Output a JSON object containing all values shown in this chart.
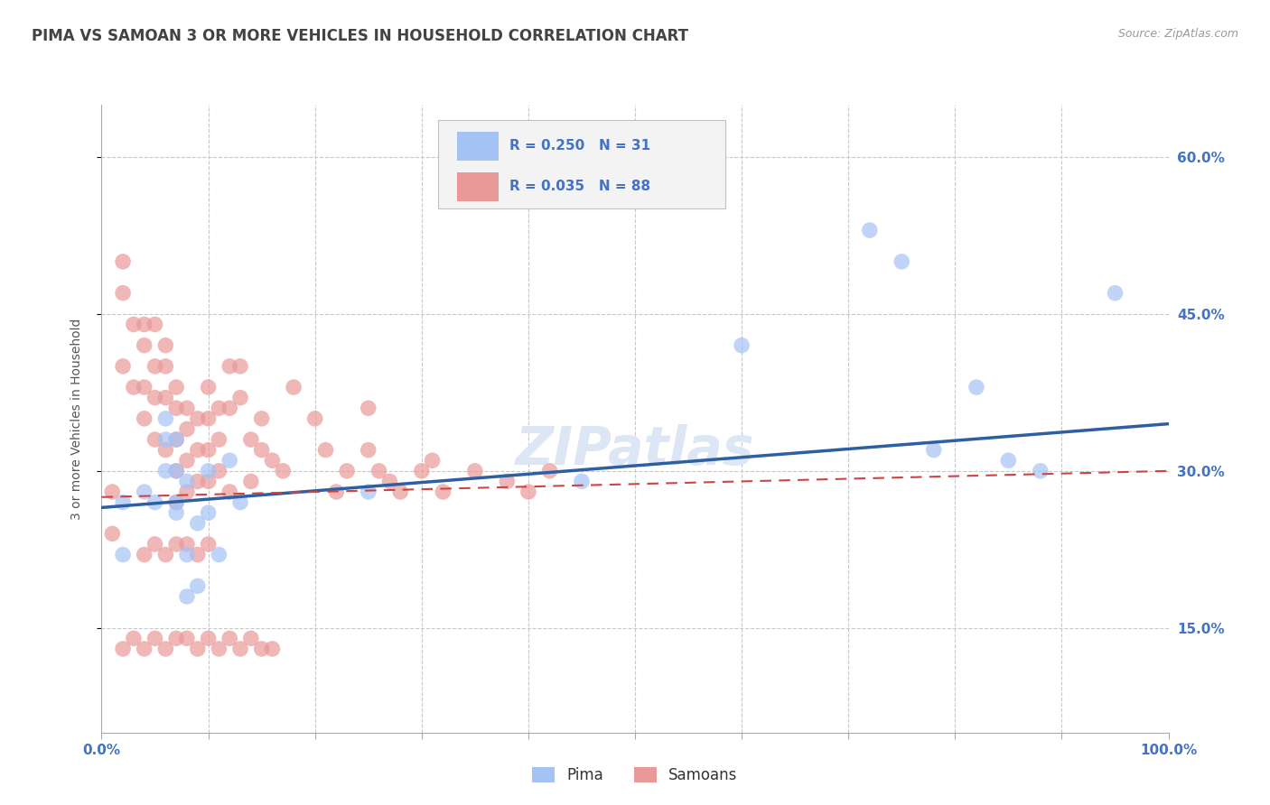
{
  "title": "PIMA VS SAMOAN 3 OR MORE VEHICLES IN HOUSEHOLD CORRELATION CHART",
  "source": "Source: ZipAtlas.com",
  "ylabel": "3 or more Vehicles in Household",
  "xlim": [
    0.0,
    1.0
  ],
  "ylim": [
    0.05,
    0.65
  ],
  "pima_color": "#a4c2f4",
  "samoan_color": "#ea9999",
  "pima_R": 0.25,
  "pima_N": 31,
  "samoan_R": 0.035,
  "samoan_N": 88,
  "pima_x": [
    0.02,
    0.04,
    0.05,
    0.06,
    0.06,
    0.07,
    0.07,
    0.07,
    0.08,
    0.08,
    0.09,
    0.1,
    0.11,
    0.12,
    0.13,
    0.25,
    0.45,
    0.6,
    0.72,
    0.75,
    0.78,
    0.82,
    0.85,
    0.88,
    0.95,
    0.06,
    0.07,
    0.08,
    0.09,
    0.1,
    0.02
  ],
  "pima_y": [
    0.27,
    0.28,
    0.27,
    0.3,
    0.35,
    0.3,
    0.27,
    0.33,
    0.29,
    0.22,
    0.25,
    0.3,
    0.22,
    0.31,
    0.27,
    0.28,
    0.29,
    0.42,
    0.53,
    0.5,
    0.32,
    0.38,
    0.31,
    0.3,
    0.47,
    0.33,
    0.26,
    0.18,
    0.19,
    0.26,
    0.22
  ],
  "samoan_x": [
    0.01,
    0.01,
    0.02,
    0.02,
    0.02,
    0.03,
    0.03,
    0.04,
    0.04,
    0.04,
    0.04,
    0.05,
    0.05,
    0.05,
    0.05,
    0.06,
    0.06,
    0.06,
    0.06,
    0.07,
    0.07,
    0.07,
    0.07,
    0.07,
    0.08,
    0.08,
    0.08,
    0.08,
    0.09,
    0.09,
    0.09,
    0.1,
    0.1,
    0.1,
    0.1,
    0.11,
    0.11,
    0.11,
    0.12,
    0.12,
    0.12,
    0.13,
    0.13,
    0.14,
    0.14,
    0.15,
    0.15,
    0.16,
    0.17,
    0.18,
    0.2,
    0.21,
    0.22,
    0.23,
    0.25,
    0.25,
    0.26,
    0.27,
    0.28,
    0.3,
    0.31,
    0.32,
    0.35,
    0.38,
    0.4,
    0.42,
    0.02,
    0.03,
    0.04,
    0.05,
    0.06,
    0.07,
    0.08,
    0.09,
    0.1,
    0.11,
    0.12,
    0.13,
    0.14,
    0.15,
    0.16,
    0.04,
    0.05,
    0.06,
    0.07,
    0.08,
    0.09,
    0.1
  ],
  "samoan_y": [
    0.28,
    0.24,
    0.5,
    0.47,
    0.4,
    0.44,
    0.38,
    0.44,
    0.42,
    0.38,
    0.35,
    0.44,
    0.4,
    0.37,
    0.33,
    0.42,
    0.4,
    0.37,
    0.32,
    0.38,
    0.36,
    0.33,
    0.3,
    0.27,
    0.36,
    0.34,
    0.31,
    0.28,
    0.35,
    0.32,
    0.29,
    0.38,
    0.35,
    0.32,
    0.29,
    0.36,
    0.33,
    0.3,
    0.4,
    0.36,
    0.28,
    0.4,
    0.37,
    0.33,
    0.29,
    0.35,
    0.32,
    0.31,
    0.3,
    0.38,
    0.35,
    0.32,
    0.28,
    0.3,
    0.36,
    0.32,
    0.3,
    0.29,
    0.28,
    0.3,
    0.31,
    0.28,
    0.3,
    0.29,
    0.28,
    0.3,
    0.13,
    0.14,
    0.13,
    0.14,
    0.13,
    0.14,
    0.14,
    0.13,
    0.14,
    0.13,
    0.14,
    0.13,
    0.14,
    0.13,
    0.13,
    0.22,
    0.23,
    0.22,
    0.23,
    0.23,
    0.22,
    0.23
  ],
  "background_color": "#ffffff",
  "grid_color": "#c8c8c8",
  "watermark": "ZIPatlas",
  "watermark_color": "#dce6f4",
  "title_color": "#434343",
  "axis_label_color": "#4472c4",
  "trendline_pima_color": "#2e5fa3",
  "trendline_samoan_color": "#cc4444",
  "legend_box_color": "#f3f3f3",
  "legend_border_color": "#c0c0c0",
  "ytick_labels": [
    "15.0%",
    "30.0%",
    "45.0%",
    "60.0%"
  ],
  "ytick_vals": [
    0.15,
    0.3,
    0.45,
    0.6
  ],
  "xtick_labels": [
    "0.0%",
    "100.0%"
  ],
  "xtick_vals": [
    0.0,
    1.0
  ]
}
